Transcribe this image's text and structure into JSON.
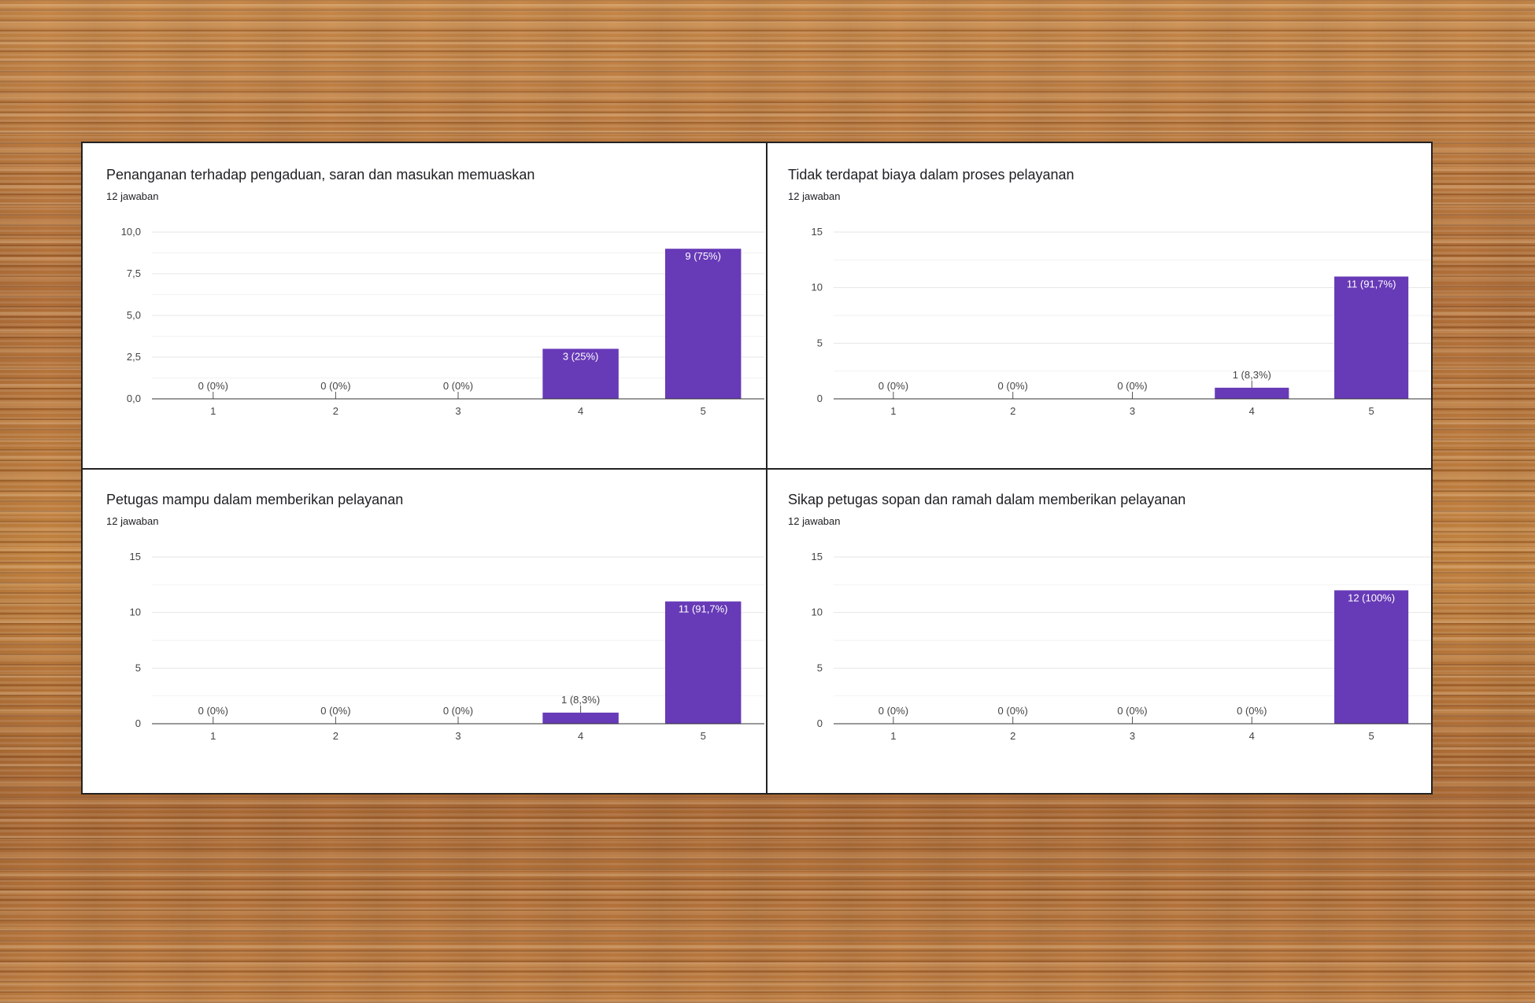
{
  "chart_data": [
    {
      "type": "bar",
      "title": "Penanganan terhadap pengaduan, saran dan masukan memuaskan",
      "subtitle": "12 jawaban",
      "categories": [
        "1",
        "2",
        "3",
        "4",
        "5"
      ],
      "values": [
        0,
        0,
        0,
        3,
        9
      ],
      "labels": [
        "0 (0%)",
        "0 (0%)",
        "0 (0%)",
        "3 (25%)",
        "9 (75%)"
      ],
      "yticks": [
        "0,0",
        "2,5",
        "5,0",
        "7,5",
        "10,0"
      ],
      "ylim": [
        0,
        10
      ],
      "grid": true
    },
    {
      "type": "bar",
      "title": "Tidak terdapat biaya dalam proses pelayanan",
      "subtitle": "12 jawaban",
      "categories": [
        "1",
        "2",
        "3",
        "4",
        "5"
      ],
      "values": [
        0,
        0,
        0,
        1,
        11
      ],
      "labels": [
        "0 (0%)",
        "0 (0%)",
        "0 (0%)",
        "1 (8,3%)",
        "11 (91,7%)"
      ],
      "yticks": [
        "0",
        "5",
        "10",
        "15"
      ],
      "ylim": [
        0,
        15
      ],
      "grid": true
    },
    {
      "type": "bar",
      "title": "Petugas mampu dalam memberikan pelayanan",
      "subtitle": "12 jawaban",
      "categories": [
        "1",
        "2",
        "3",
        "4",
        "5"
      ],
      "values": [
        0,
        0,
        0,
        1,
        11
      ],
      "labels": [
        "0 (0%)",
        "0 (0%)",
        "0 (0%)",
        "1 (8,3%)",
        "11 (91,7%)"
      ],
      "yticks": [
        "0",
        "5",
        "10",
        "15"
      ],
      "ylim": [
        0,
        15
      ],
      "grid": true
    },
    {
      "type": "bar",
      "title": "Sikap petugas sopan dan ramah dalam memberikan pelayanan",
      "subtitle": "12 jawaban",
      "categories": [
        "1",
        "2",
        "3",
        "4",
        "5"
      ],
      "values": [
        0,
        0,
        0,
        0,
        12
      ],
      "labels": [
        "0 (0%)",
        "0 (0%)",
        "0 (0%)",
        "0 (0%)",
        "12 (100%)"
      ],
      "yticks": [
        "0",
        "5",
        "10",
        "15"
      ],
      "ylim": [
        0,
        15
      ],
      "grid": true
    }
  ],
  "colors": {
    "bar": "#673ab7",
    "grid": "#e6e6e6",
    "axis": "#333333",
    "text": "#202124",
    "tick_text": "#444444",
    "label_inside": "#ffffff"
  }
}
